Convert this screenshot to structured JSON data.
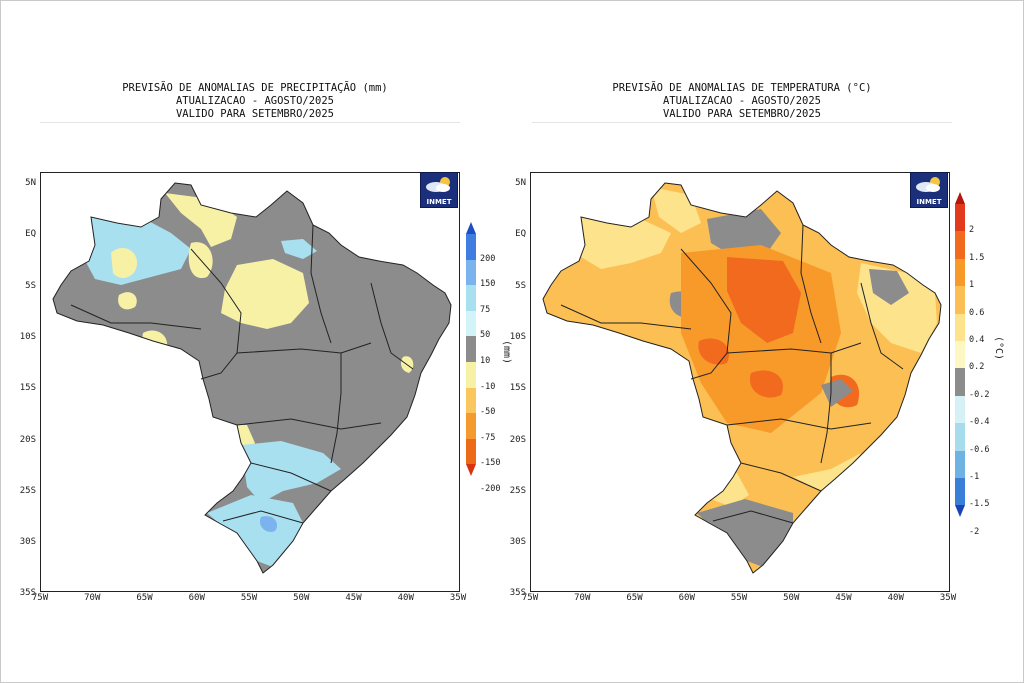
{
  "left_panel": {
    "title_lines": [
      "PREVISÃO DE ANOMALIAS DE PRECIPITAÇÃO (mm)",
      "ATUALIZACAO - AGOSTO/2025",
      "VALIDO PARA SETEMBRO/2025"
    ],
    "unit_label": "(mm)",
    "colorbar_ticks": [
      "200",
      "150",
      "75",
      "50",
      "10",
      "-10",
      "-50",
      "-75",
      "-150",
      "-200"
    ],
    "colorbar_colors": [
      "#1c4fc4",
      "#3f7ee0",
      "#7bb3ee",
      "#a9e0f0",
      "#d2f3f8",
      "#8c8c8c",
      "#f7f1a6",
      "#f9c75d",
      "#f59a2e",
      "#ec6a18",
      "#d8330f"
    ],
    "logo_text": "INMET"
  },
  "right_panel": {
    "title_lines": [
      "PREVISÃO DE ANOMALIAS DE TEMPERATURA (°C)",
      "ATUALIZACAO - AGOSTO/2025",
      "VALIDO PARA SETEMBRO/2025"
    ],
    "unit_label": "(°C)",
    "colorbar_ticks": [
      "2",
      "1.5",
      "1",
      "0.6",
      "0.4",
      "0.2",
      "-0.2",
      "-0.4",
      "-0.6",
      "-1",
      "-1.5",
      "-2"
    ],
    "colorbar_colors": [
      "#b2180e",
      "#e23a1c",
      "#f26a1e",
      "#f79a2a",
      "#fbbf54",
      "#fde38c",
      "#fdf7c4",
      "#8c8c8c",
      "#d5f1f6",
      "#a6dceb",
      "#6fb2e4",
      "#3a7fd8",
      "#1844b6"
    ],
    "logo_text": "INMET"
  },
  "lat_labels": [
    "5N",
    "EQ",
    "5S",
    "10S",
    "15S",
    "20S",
    "25S",
    "30S",
    "35S"
  ],
  "lon_labels": [
    "75W",
    "70W",
    "65W",
    "60W",
    "55W",
    "50W",
    "45W",
    "40W",
    "35W"
  ],
  "colors": {
    "neutral": "#8c8c8c",
    "dry_light": "#f7f1a6",
    "wet_light": "#a9e0f0",
    "wet_mid": "#7bb3ee",
    "warm_1": "#fde38c",
    "warm_2": "#fbbf54",
    "warm_3": "#f79a2a",
    "warm_4": "#f26a1e"
  }
}
